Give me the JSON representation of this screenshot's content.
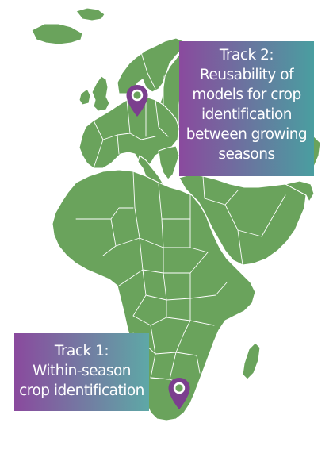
{
  "map": {
    "land_color": "#6aa35c",
    "border_color": "#ffffff",
    "background_color": "#ffffff"
  },
  "track2": {
    "lines": [
      "Track 2:",
      "Reusability of",
      "models for crop",
      "identification",
      "between growing",
      "seasons"
    ],
    "gradient_start": "#8a4a9e",
    "gradient_end": "#4a9ea0"
  },
  "track1": {
    "lines": [
      "Track 1:",
      "Within-season",
      "crop identification"
    ],
    "gradient_start": "#8a4a9e",
    "gradient_end": "#5ea8a6"
  },
  "pins": [
    {
      "name": "location-pin-germany",
      "icon": "map-marker-icon",
      "color": "#7b3f8e"
    },
    {
      "name": "location-pin-south-africa",
      "icon": "map-marker-icon",
      "color": "#7b3f8e"
    }
  ]
}
